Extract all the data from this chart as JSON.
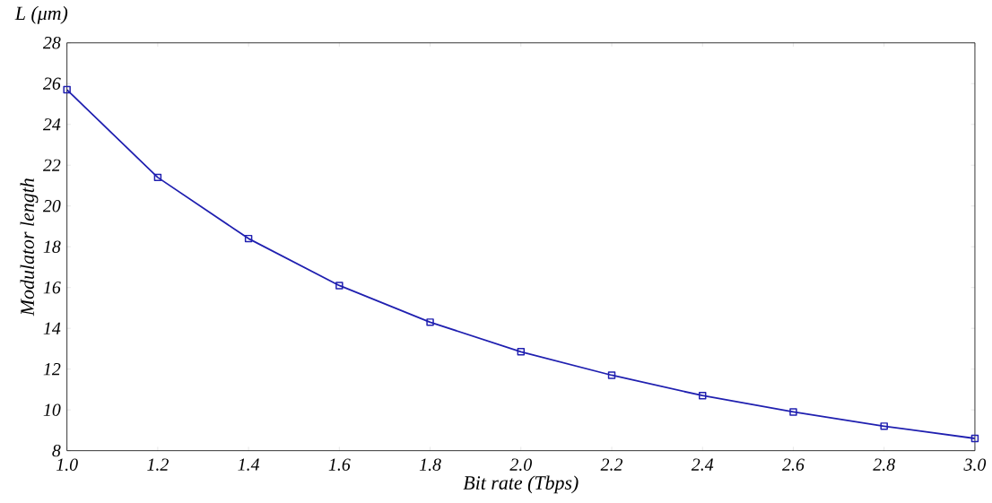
{
  "chart_data": {
    "type": "line",
    "xlabel": "Bit rate (Tbps)",
    "ylabel": "Modulator length",
    "annotations": [
      "L (μm)"
    ],
    "x": [
      1.0,
      1.2,
      1.4,
      1.6,
      1.8,
      2.0,
      2.2,
      2.4,
      2.6,
      2.8,
      3.0
    ],
    "series": [
      {
        "color": "#2020b0",
        "values": [
          25.7,
          21.4,
          18.4,
          16.1,
          14.3,
          12.85,
          11.7,
          10.7,
          9.9,
          9.2,
          8.6
        ]
      }
    ],
    "xlim": [
      1.0,
      3.0
    ],
    "ylim": [
      8,
      28
    ],
    "xticks": [
      {
        "value": 1.0,
        "label": "1.0"
      },
      {
        "value": 1.2,
        "label": "1.2"
      },
      {
        "value": 1.4,
        "label": "1.4"
      },
      {
        "value": 1.6,
        "label": "1.6"
      },
      {
        "value": 1.8,
        "label": "1.8"
      },
      {
        "value": 2.0,
        "label": "2.0"
      },
      {
        "value": 2.2,
        "label": "2.2"
      },
      {
        "value": 2.4,
        "label": "2.4"
      },
      {
        "value": 2.6,
        "label": "2.6"
      },
      {
        "value": 2.8,
        "label": "2.8"
      },
      {
        "value": 3.0,
        "label": "3.0"
      }
    ],
    "yticks": [
      8,
      10,
      12,
      14,
      16,
      18,
      20,
      22,
      24,
      26,
      28
    ],
    "grid": false,
    "marker": "square",
    "line_style": "solid"
  }
}
